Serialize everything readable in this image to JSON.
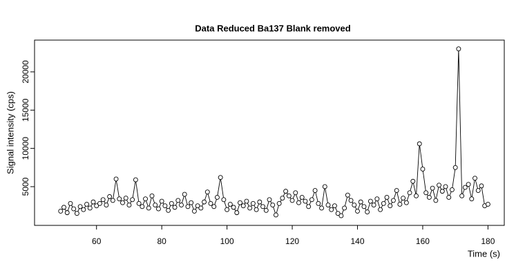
{
  "chart_data": {
    "type": "line",
    "title": "Data Reduced Ba137 Blank removed",
    "x_label": "Time (s)",
    "y_label": "Signal intensity (cps)",
    "x": [
      49,
      50,
      51,
      52,
      53,
      54,
      55,
      56,
      57,
      58,
      59,
      60,
      61,
      62,
      63,
      64,
      65,
      66,
      67,
      68,
      69,
      70,
      71,
      72,
      73,
      74,
      75,
      76,
      77,
      78,
      79,
      80,
      81,
      82,
      83,
      84,
      85,
      86,
      87,
      88,
      89,
      90,
      91,
      92,
      93,
      94,
      95,
      96,
      97,
      98,
      99,
      100,
      101,
      102,
      103,
      104,
      105,
      106,
      107,
      108,
      109,
      110,
      111,
      112,
      113,
      114,
      115,
      116,
      117,
      118,
      119,
      120,
      121,
      122,
      123,
      124,
      125,
      126,
      127,
      128,
      129,
      130,
      131,
      132,
      133,
      134,
      135,
      136,
      137,
      138,
      139,
      140,
      141,
      142,
      143,
      144,
      145,
      146,
      147,
      148,
      149,
      150,
      151,
      152,
      153,
      154,
      155,
      156,
      157,
      158,
      159,
      160,
      161,
      162,
      163,
      164,
      165,
      166,
      167,
      168,
      169,
      170,
      171,
      172,
      173,
      174,
      175,
      176,
      177,
      178,
      179,
      180
    ],
    "values": [
      1800,
      2300,
      1600,
      2800,
      2100,
      1500,
      2400,
      2000,
      2700,
      2200,
      3000,
      2500,
      2800,
      3300,
      2600,
      3700,
      3200,
      6000,
      3400,
      2900,
      3500,
      2600,
      3300,
      5900,
      2800,
      2400,
      3400,
      2200,
      3800,
      2600,
      2100,
      3100,
      2500,
      1900,
      2800,
      2300,
      3200,
      2600,
      4000,
      2400,
      2900,
      1800,
      2500,
      2200,
      3000,
      4300,
      2800,
      2400,
      3600,
      6200,
      3300,
      2000,
      2700,
      2300,
      1600,
      2900,
      2500,
      3100,
      2200,
      2800,
      2000,
      3000,
      2400,
      1900,
      3300,
      2600,
      1300,
      2800,
      3500,
      4400,
      3800,
      3200,
      4200,
      2900,
      3600,
      3100,
      2400,
      3300,
      4500,
      2800,
      2200,
      5000,
      2600,
      2000,
      2500,
      1500,
      1200,
      2200,
      3900,
      3200,
      2600,
      1800,
      3000,
      2400,
      1700,
      3100,
      2600,
      3400,
      2000,
      2800,
      3600,
      2500,
      3200,
      4500,
      2700,
      3500,
      2900,
      4200,
      5700,
      3800,
      10600,
      7300,
      4200,
      3600,
      4800,
      3200,
      5200,
      4400,
      5000,
      3600,
      4600,
      7500,
      23000,
      3800,
      4900,
      5300,
      3400,
      6100,
      4500,
      5100,
      2500,
      2700
    ],
    "color": "#000000",
    "xlim": [
      41,
      185
    ],
    "xticks": [
      60,
      80,
      100,
      120,
      140,
      160,
      180
    ],
    "ylim": [
      -60,
      24150
    ],
    "yticks": [
      5000,
      10000,
      15000,
      20000
    ]
  }
}
